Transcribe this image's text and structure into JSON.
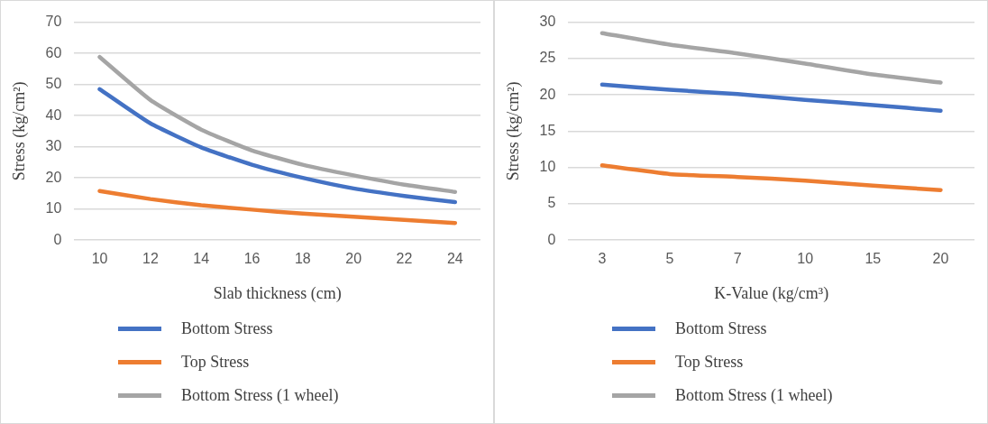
{
  "chart_data": [
    {
      "type": "line",
      "xlabel": "Slab thickness (cm)",
      "ylabel": "Stress (kg/cm²)",
      "categories": [
        "10",
        "12",
        "14",
        "16",
        "18",
        "20",
        "22",
        "24"
      ],
      "ylim": [
        0,
        70
      ],
      "yticks": [
        0,
        10,
        20,
        30,
        40,
        50,
        60,
        70
      ],
      "grid": "y",
      "legend": "bottom",
      "marker": "none",
      "line_style": "solid",
      "series": [
        {
          "name": "Bottom Stress",
          "color": "#4472c4",
          "values": [
            48.5,
            37.5,
            29.8,
            24.2,
            20,
            16.6,
            14.2,
            12.2
          ]
        },
        {
          "name": "Top Stress",
          "color": "#ed7d31",
          "values": [
            15.8,
            13.2,
            11.2,
            9.8,
            8.5,
            7.5,
            6.5,
            5.5
          ]
        },
        {
          "name": "Bottom Stress (1 wheel)",
          "color": "#a5a5a5",
          "values": [
            58.8,
            45,
            35.5,
            28.8,
            24.2,
            20.8,
            17.8,
            15.5
          ]
        }
      ]
    },
    {
      "type": "line",
      "xlabel": "K-Value (kg/cm³)",
      "ylabel": "Stress (kg/cm²)",
      "categories": [
        "3",
        "5",
        "7",
        "10",
        "15",
        "20"
      ],
      "ylim": [
        0,
        30
      ],
      "yticks": [
        0,
        5,
        10,
        15,
        20,
        25,
        30
      ],
      "grid": "y",
      "legend": "bottom",
      "marker": "none",
      "line_style": "solid",
      "series": [
        {
          "name": "Bottom Stress",
          "color": "#4472c4",
          "values": [
            21.4,
            20.7,
            20.1,
            19.3,
            18.6,
            17.8
          ]
        },
        {
          "name": "Top Stress",
          "color": "#ed7d31",
          "values": [
            10.3,
            9.1,
            8.7,
            8.2,
            7.5,
            6.9
          ]
        },
        {
          "name": "Bottom Stress (1 wheel)",
          "color": "#a5a5a5",
          "values": [
            28.5,
            26.9,
            25.7,
            24.3,
            22.8,
            21.7
          ]
        }
      ]
    }
  ]
}
